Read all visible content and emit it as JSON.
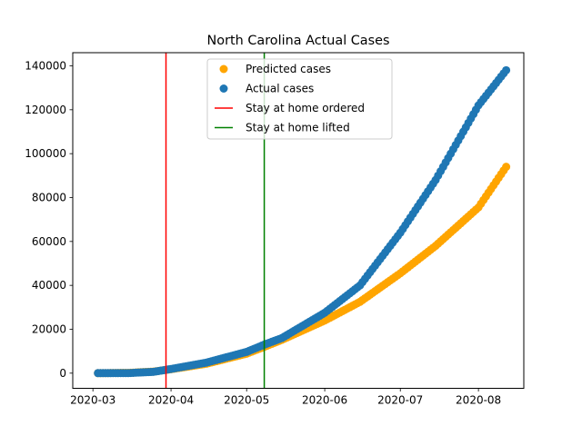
{
  "chart_data": {
    "type": "scatter",
    "title": "North Carolina Actual Cases",
    "xlabel": "",
    "ylabel": "",
    "x_domain": [
      "2020-02-22",
      "2020-08-19"
    ],
    "ylim": [
      -6900,
      146000
    ],
    "x_ticks": [
      "2020-03",
      "2020-04",
      "2020-05",
      "2020-06",
      "2020-07",
      "2020-08"
    ],
    "y_ticks": [
      "0",
      "20000",
      "40000",
      "60000",
      "80000",
      "100000",
      "120000",
      "140000"
    ],
    "grid": false,
    "legend_position": "upper-center",
    "colors": {
      "predicted": "#ffa500",
      "actual": "#1f77b4",
      "stay_ordered": "#ff0000",
      "stay_lifted": "#008000"
    },
    "series": [
      {
        "name": "Predicted cases",
        "marker": "circle",
        "anchors": [
          {
            "x": "2020-03-03",
            "y": 10
          },
          {
            "x": "2020-03-15",
            "y": 150
          },
          {
            "x": "2020-03-25",
            "y": 700
          },
          {
            "x": "2020-04-01",
            "y": 1800
          },
          {
            "x": "2020-04-15",
            "y": 4300
          },
          {
            "x": "2020-05-01",
            "y": 8900
          },
          {
            "x": "2020-05-08",
            "y": 12000
          },
          {
            "x": "2020-05-15",
            "y": 15200
          },
          {
            "x": "2020-06-01",
            "y": 24000
          },
          {
            "x": "2020-06-15",
            "y": 32500
          },
          {
            "x": "2020-07-01",
            "y": 45500
          },
          {
            "x": "2020-07-15",
            "y": 58000
          },
          {
            "x": "2020-08-01",
            "y": 75500
          },
          {
            "x": "2020-08-12",
            "y": 94000
          }
        ]
      },
      {
        "name": "Actual cases",
        "marker": "circle",
        "anchors": [
          {
            "x": "2020-03-03",
            "y": 10
          },
          {
            "x": "2020-03-15",
            "y": 50
          },
          {
            "x": "2020-03-25",
            "y": 600
          },
          {
            "x": "2020-04-01",
            "y": 1900
          },
          {
            "x": "2020-04-15",
            "y": 4800
          },
          {
            "x": "2020-05-01",
            "y": 9700
          },
          {
            "x": "2020-05-08",
            "y": 13000
          },
          {
            "x": "2020-05-15",
            "y": 16000
          },
          {
            "x": "2020-06-01",
            "y": 27500
          },
          {
            "x": "2020-06-15",
            "y": 40000
          },
          {
            "x": "2020-07-01",
            "y": 64000
          },
          {
            "x": "2020-07-15",
            "y": 88000
          },
          {
            "x": "2020-08-01",
            "y": 122000
          },
          {
            "x": "2020-08-12",
            "y": 138000
          }
        ]
      }
    ],
    "vlines": [
      {
        "name": "Stay at home ordered",
        "x": "2020-03-30"
      },
      {
        "name": "Stay at home lifted",
        "x": "2020-05-08"
      }
    ],
    "legend": [
      "Predicted cases",
      "Actual cases",
      "Stay at home ordered",
      "Stay at home lifted"
    ]
  }
}
